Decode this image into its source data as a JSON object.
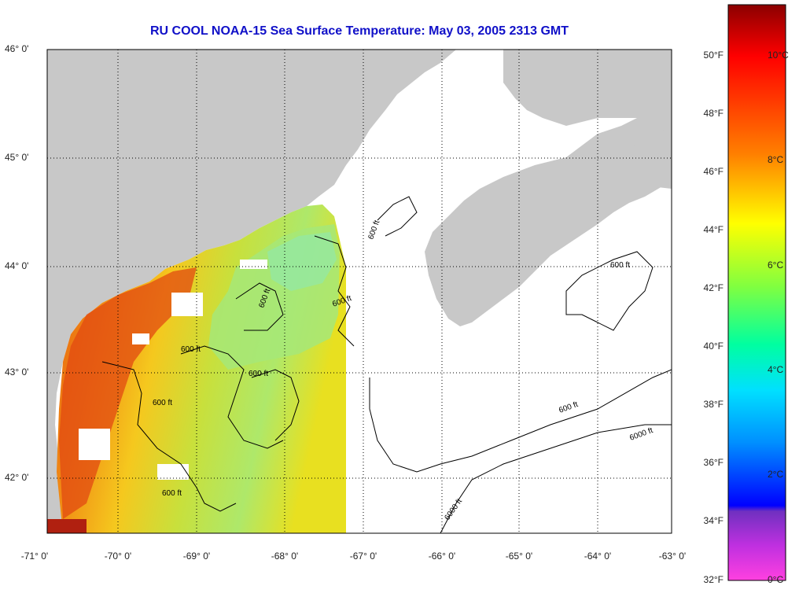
{
  "title": "RU COOL  NOAA-15  Sea Surface Temperature:  May 03, 2005 2313 GMT",
  "lat_labels": [
    "46° 0'",
    "45° 0'",
    "44° 0'",
    "43° 0'",
    "42° 0'"
  ],
  "lon_labels": [
    "-71° 0'",
    "-70° 0'",
    "-69° 0'",
    "-68° 0'",
    "-67° 0'",
    "-66° 0'",
    "-65° 0'",
    "-64° 0'",
    "-63° 0'"
  ],
  "colorbar": {
    "fahrenheit_labels": [
      "50°F",
      "48°F",
      "46°F",
      "44°F",
      "42°F",
      "40°F",
      "38°F",
      "36°F",
      "34°F",
      "32°F"
    ],
    "celsius_labels": [
      "10°C",
      "8°C",
      "6°C",
      "4°C",
      "2°C",
      "0°C"
    ]
  },
  "contour_labels": [
    "600 ft",
    "600 ft",
    "600 ft",
    "600 ft",
    "600 ft",
    "600 ft",
    "600 ft",
    "600 ft",
    "6000 ft",
    "6000 ft",
    "600 ft"
  ],
  "colors": {
    "land": "#c8c8c8",
    "ocean_nodata": "#ffffff",
    "title": "#1010c8",
    "contour": "#000000"
  }
}
